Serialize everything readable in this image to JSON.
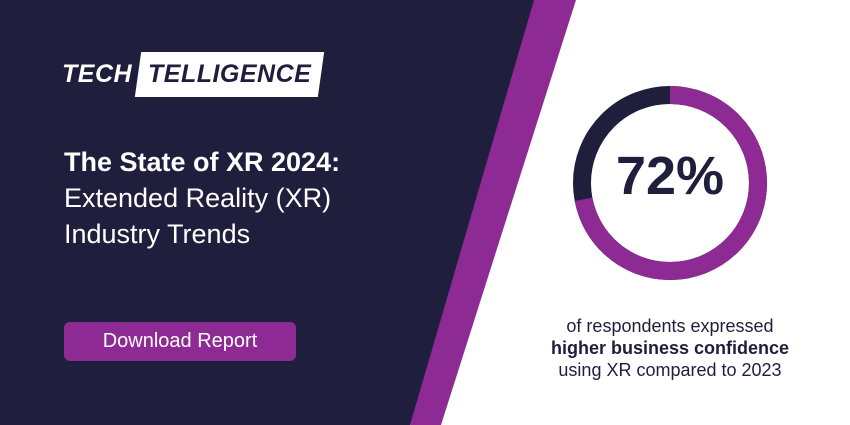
{
  "logo": {
    "part1": "TECH",
    "part2": "TELLIGENCE"
  },
  "title": {
    "line1": "The State of XR 2024:",
    "line2": "Extended Reality (XR)",
    "line3": "Industry Trends"
  },
  "cta": {
    "label": "Download Report"
  },
  "stat": {
    "value_text": "72%",
    "fraction": 0.72,
    "caption_line1": "of respondents expressed",
    "caption_line2": "higher business confidence",
    "caption_line3": "using XR compared to 2023"
  },
  "colors": {
    "navy": "#1f1e3c",
    "purple": "#8d2a93",
    "white": "#ffffff"
  }
}
